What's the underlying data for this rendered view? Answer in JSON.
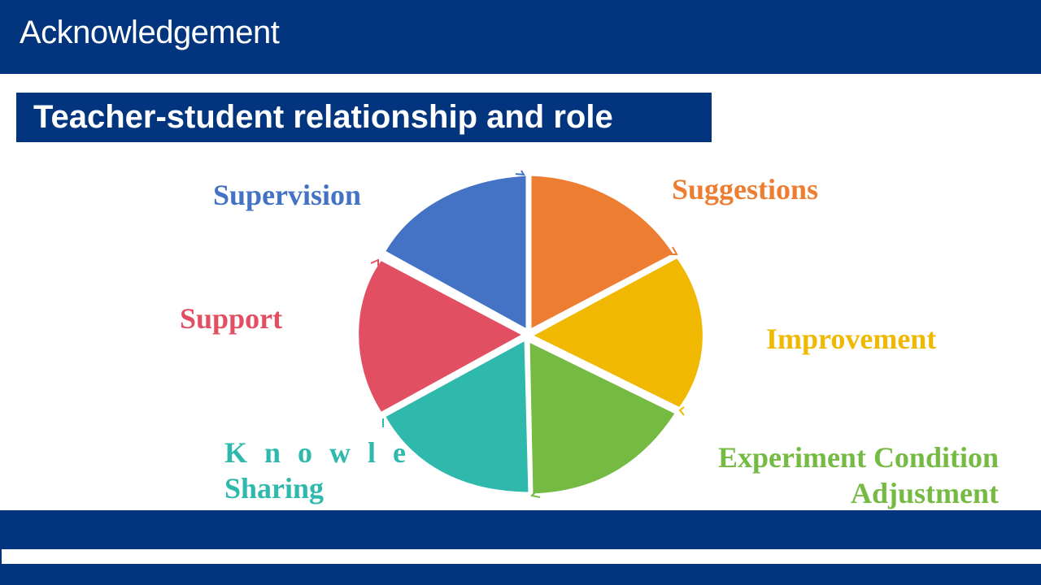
{
  "slide": {
    "title": "Acknowledgement",
    "subtitle": "Teacher-student relationship and role"
  },
  "diagram": {
    "segments": [
      {
        "label": "Supervision",
        "color": "#4472c4"
      },
      {
        "label": "Suggestions",
        "color": "#ed7d31"
      },
      {
        "label": "Improvement",
        "color": "#f0b800"
      },
      {
        "label": "Experiment Condition Adjustment",
        "color": "#75ba43",
        "label_line1": "Experiment Condition",
        "label_line2": "Adjustment"
      },
      {
        "label": "Knowledge Sharing",
        "color": "#2fb9ad",
        "label_line1": "Knowledge",
        "label_line2": "Sharing"
      },
      {
        "label": "Support",
        "color": "#e34f62"
      }
    ]
  },
  "colors": {
    "header_background": "#03357f",
    "page_background": "#ffffff"
  }
}
